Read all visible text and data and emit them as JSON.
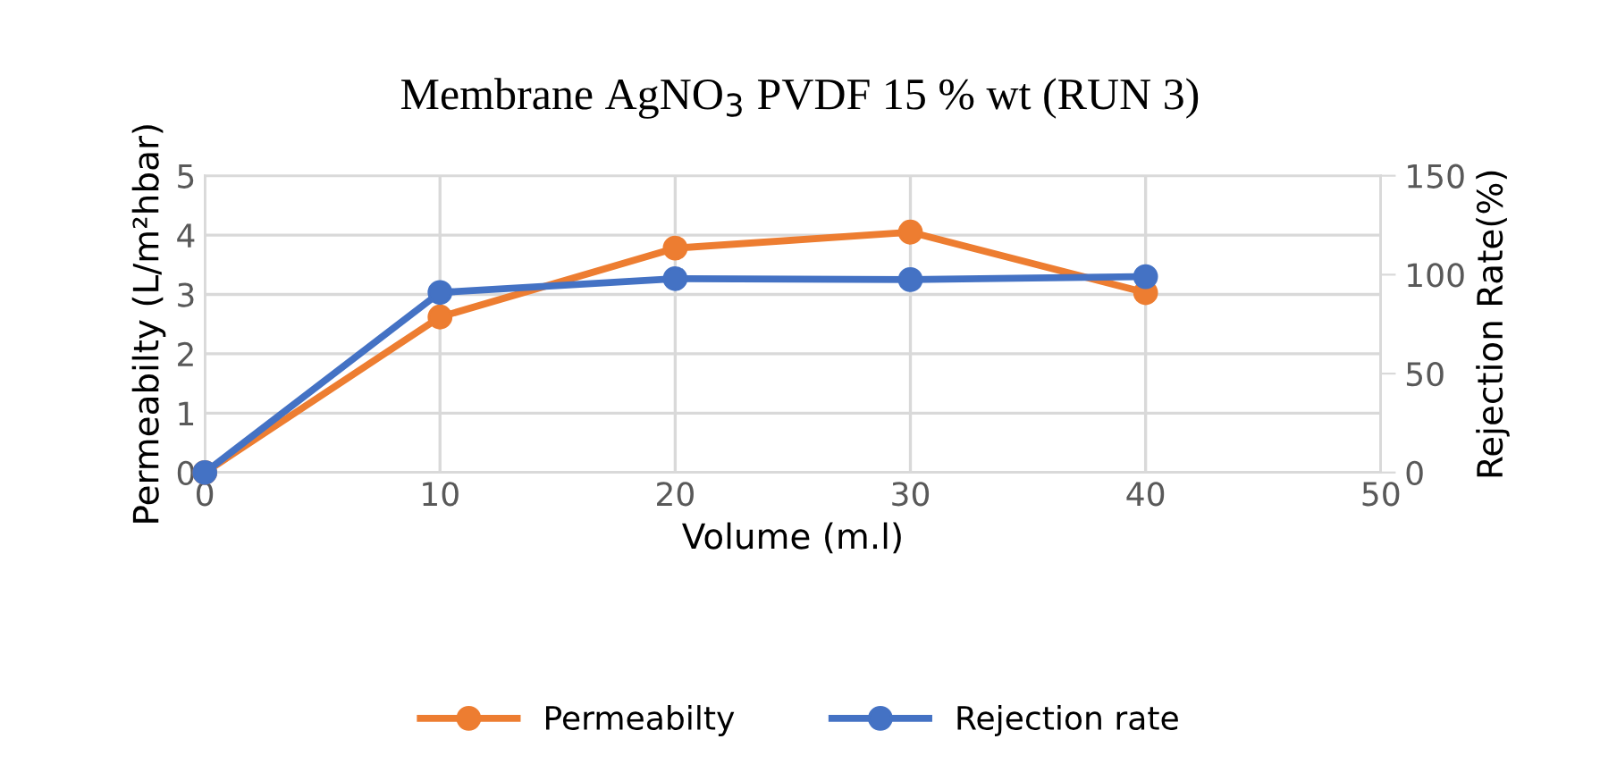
{
  "chart_data": {
    "type": "line",
    "title": "Membrane AgNO$_{3}$ PVDF 15 % wt (RUN 3)",
    "xlabel": "Volume (m.l)",
    "ylabel": "Permeabilty (L/m²hbar)",
    "y2label": "Rejection Rate(%)",
    "x": [
      0,
      10,
      20,
      30,
      40
    ],
    "series": [
      {
        "name": "Permeabilty",
        "color": "#ed7d31",
        "values": [
          0,
          2.62,
          3.78,
          4.05,
          3.03
        ]
      },
      {
        "name": "Rejection rate",
        "color": "#4472c4",
        "values": [
          0,
          91,
          98,
          97.5,
          99
        ],
        "axis": "y2"
      }
    ],
    "xlim": [
      0,
      50
    ],
    "xticks": [
      0,
      10,
      20,
      30,
      40,
      50
    ],
    "ylim": [
      0,
      5
    ],
    "yticks": [
      0,
      1,
      2,
      3,
      4,
      5
    ],
    "y2lim": [
      0,
      150
    ],
    "y2ticks": [
      0,
      50,
      100,
      150
    ],
    "grid": true,
    "legend": "bottom",
    "marker": "circle",
    "line_style": "solid"
  }
}
